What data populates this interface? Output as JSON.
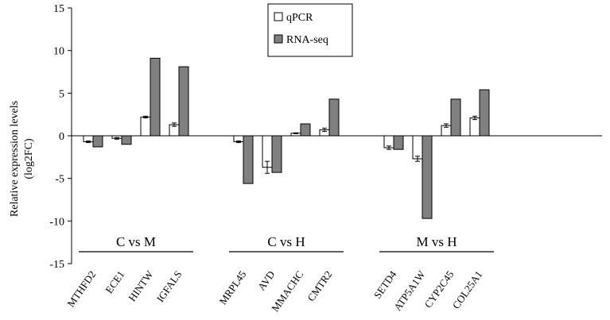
{
  "chart_data": {
    "type": "bar",
    "title": "",
    "xlabel": "",
    "ylabel_line1": "Relative expression levels",
    "ylabel_line2": "(log2FC)",
    "ylim": [
      -15,
      15
    ],
    "yticks": [
      15,
      10,
      5,
      0,
      -5,
      -10,
      -15
    ],
    "legend_position": "top-center",
    "grid": false,
    "categories": [
      "MTHFD2",
      "ECE1",
      "HINTW",
      "IGFALS",
      "MRPL45",
      "AVD",
      "MMACHC",
      "CMTR2",
      "SETD4",
      "ATP5A1W",
      "CYP2C45",
      "COL25A1"
    ],
    "groups": [
      {
        "label": "C vs M",
        "categories": [
          "MTHFD2",
          "ECE1",
          "HINTW",
          "IGFALS"
        ]
      },
      {
        "label": "C vs H",
        "categories": [
          "MRPL45",
          "AVD",
          "MMACHC",
          "CMTR2"
        ]
      },
      {
        "label": "M vs H",
        "categories": [
          "SETD4",
          "ATP5A1W",
          "CYP2C45",
          "COL25A1"
        ]
      }
    ],
    "series": [
      {
        "name": "qPCR",
        "color": "#ffffff",
        "values": [
          -0.7,
          -0.3,
          2.2,
          1.3,
          -0.7,
          -3.7,
          0.3,
          0.7,
          -1.4,
          -2.7,
          1.2,
          2.1
        ],
        "errors": [
          0.1,
          0.1,
          0.1,
          0.2,
          0.1,
          0.7,
          0.05,
          0.2,
          0.2,
          0.3,
          0.2,
          0.2
        ]
      },
      {
        "name": "RNA-seq",
        "color": "#808080",
        "values": [
          -1.3,
          -1.0,
          9.1,
          8.1,
          -5.6,
          -4.3,
          1.4,
          4.3,
          -1.6,
          -9.7,
          4.3,
          5.4
        ]
      }
    ]
  }
}
